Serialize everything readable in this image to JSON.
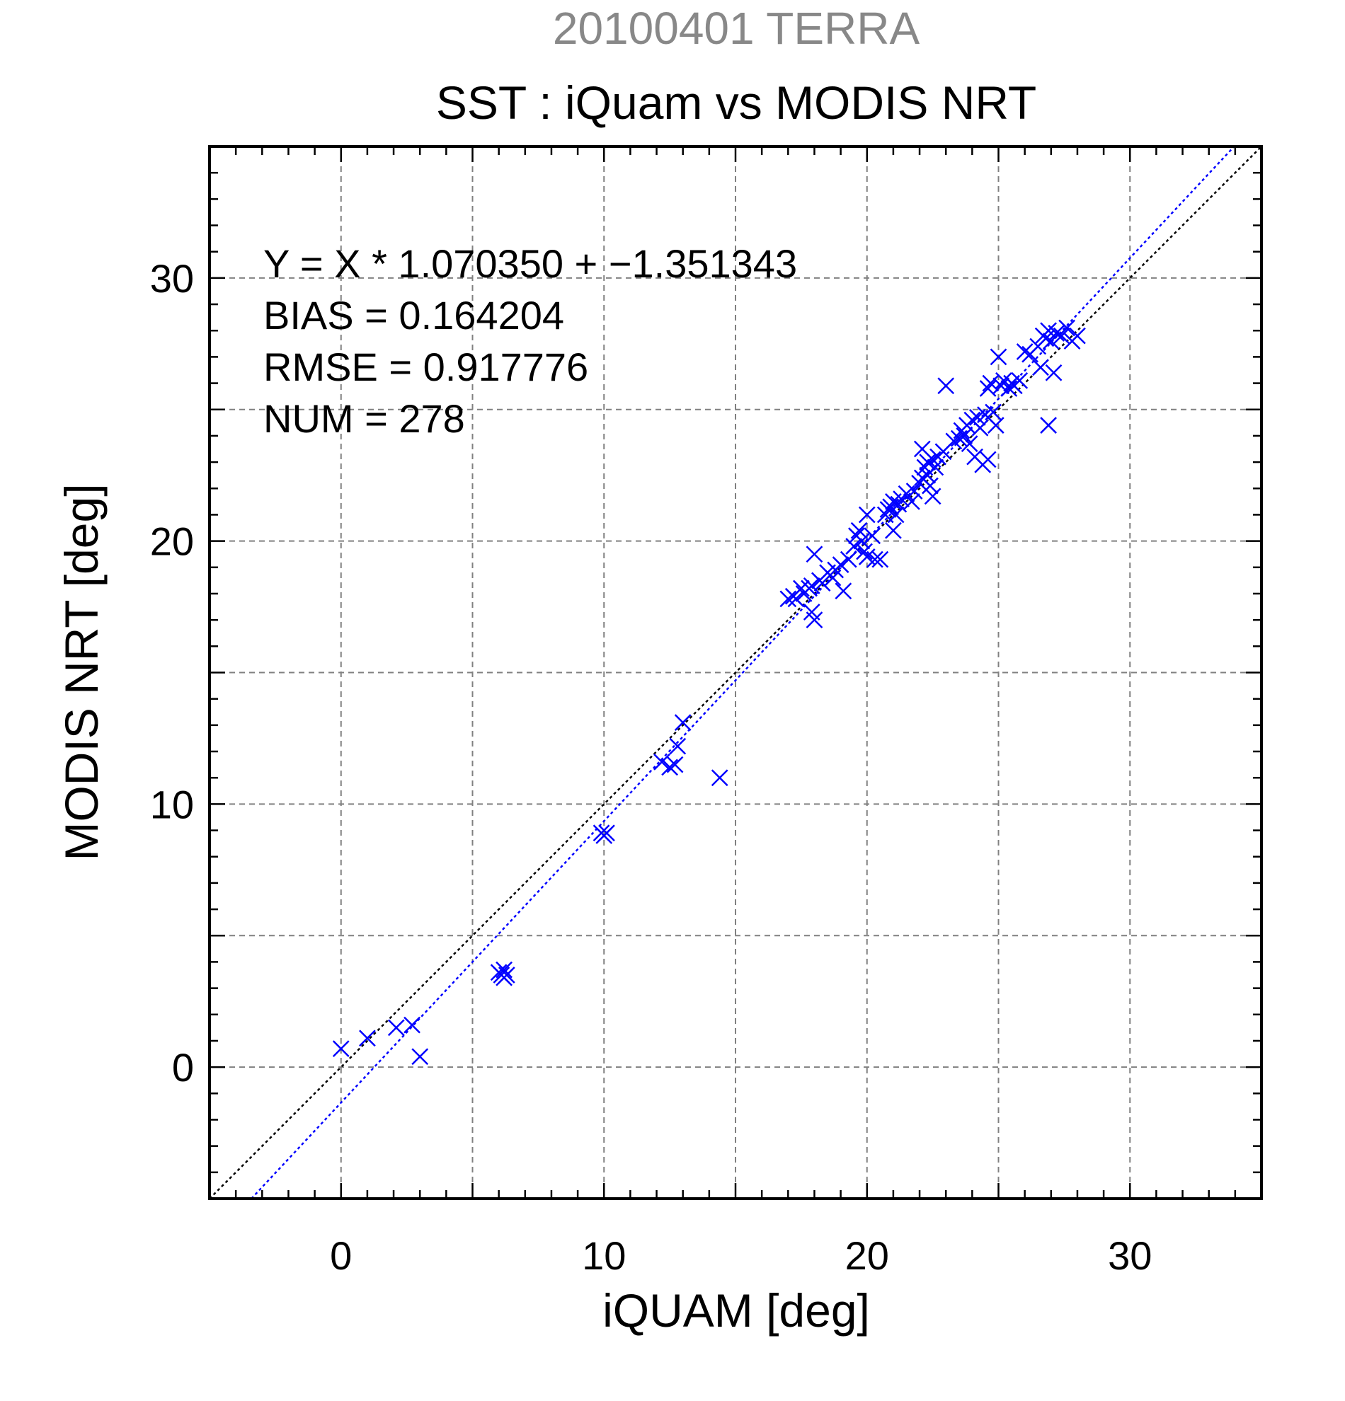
{
  "chart_data": {
    "type": "scatter",
    "supertitle": "20100401 TERRA",
    "title": "SST : iQuam vs MODIS NRT",
    "xlabel": "iQUAM [deg]",
    "ylabel": "MODIS NRT [deg]",
    "xlim": [
      -5,
      35
    ],
    "ylim": [
      -5,
      35
    ],
    "x_ticks": [
      0,
      10,
      20,
      30
    ],
    "y_ticks": [
      0,
      10,
      20,
      30
    ],
    "grid": true,
    "annotations": [
      "Y = X * 1.070350 + −1.351343",
      "BIAS = 0.164204",
      "RMSE = 0.917776",
      "NUM = 278"
    ],
    "lines": [
      {
        "name": "1:1",
        "slope": 1.0,
        "intercept": 0.0,
        "color": "#000000",
        "style": "dotted"
      },
      {
        "name": "fit",
        "slope": 1.07035,
        "intercept": -1.351343,
        "color": "#0000ff",
        "style": "dotted"
      }
    ],
    "marker": "x",
    "series": [
      {
        "color": "#0000ff",
        "points": [
          [
            0.0,
            0.7
          ],
          [
            1.0,
            1.1
          ],
          [
            2.1,
            1.5
          ],
          [
            2.7,
            1.6
          ],
          [
            3.0,
            0.4
          ],
          [
            6.0,
            3.6
          ],
          [
            6.1,
            3.5
          ],
          [
            6.2,
            3.7
          ],
          [
            6.3,
            3.5
          ],
          [
            6.2,
            3.4
          ],
          [
            9.9,
            8.9
          ],
          [
            10.0,
            8.8
          ],
          [
            10.1,
            8.9
          ],
          [
            12.2,
            11.6
          ],
          [
            12.5,
            11.4
          ],
          [
            12.7,
            11.5
          ],
          [
            12.8,
            12.2
          ],
          [
            13.0,
            13.1
          ],
          [
            14.4,
            11.0
          ],
          [
            17.0,
            17.8
          ],
          [
            17.2,
            17.9
          ],
          [
            17.3,
            17.8
          ],
          [
            17.5,
            18.2
          ],
          [
            17.6,
            18.0
          ],
          [
            17.8,
            18.2
          ],
          [
            17.9,
            18.3
          ],
          [
            18.0,
            19.5
          ],
          [
            17.9,
            17.3
          ],
          [
            18.0,
            17.0
          ],
          [
            18.2,
            18.5
          ],
          [
            18.3,
            18.4
          ],
          [
            18.5,
            18.8
          ],
          [
            18.7,
            18.6
          ],
          [
            18.8,
            18.9
          ],
          [
            19.0,
            19.1
          ],
          [
            19.1,
            18.1
          ],
          [
            19.3,
            19.3
          ],
          [
            19.5,
            19.8
          ],
          [
            19.6,
            20.2
          ],
          [
            19.7,
            20.4
          ],
          [
            19.8,
            20.0
          ],
          [
            19.9,
            19.6
          ],
          [
            20.0,
            19.4
          ],
          [
            20.0,
            21.0
          ],
          [
            20.2,
            20.2
          ],
          [
            20.3,
            19.3
          ],
          [
            20.5,
            19.3
          ],
          [
            20.7,
            21.0
          ],
          [
            20.8,
            21.2
          ],
          [
            20.9,
            21.3
          ],
          [
            21.0,
            20.4
          ],
          [
            21.0,
            21.5
          ],
          [
            21.1,
            21.0
          ],
          [
            21.2,
            21.4
          ],
          [
            21.3,
            21.6
          ],
          [
            21.5,
            21.8
          ],
          [
            21.7,
            21.5
          ],
          [
            21.8,
            21.9
          ],
          [
            22.0,
            22.2
          ],
          [
            22.1,
            22.4
          ],
          [
            22.1,
            23.5
          ],
          [
            22.2,
            22.8
          ],
          [
            22.3,
            23.0
          ],
          [
            22.3,
            22.5
          ],
          [
            22.4,
            22.1
          ],
          [
            22.5,
            23.1
          ],
          [
            22.6,
            22.8
          ],
          [
            22.5,
            21.7
          ],
          [
            22.7,
            23.2
          ],
          [
            22.9,
            23.4
          ],
          [
            23.0,
            25.9
          ],
          [
            23.3,
            23.8
          ],
          [
            23.5,
            23.9
          ],
          [
            23.6,
            24.2
          ],
          [
            23.7,
            24.0
          ],
          [
            23.8,
            24.4
          ],
          [
            23.9,
            23.7
          ],
          [
            24.0,
            24.6
          ],
          [
            24.1,
            23.2
          ],
          [
            24.2,
            24.7
          ],
          [
            24.3,
            24.3
          ],
          [
            24.4,
            22.9
          ],
          [
            24.5,
            24.8
          ],
          [
            24.6,
            23.1
          ],
          [
            24.6,
            25.8
          ],
          [
            24.7,
            26.0
          ],
          [
            24.8,
            24.9
          ],
          [
            24.9,
            24.4
          ],
          [
            25.0,
            27.0
          ],
          [
            25.1,
            25.9
          ],
          [
            25.2,
            26.1
          ],
          [
            25.4,
            25.8
          ],
          [
            25.5,
            26.0
          ],
          [
            25.6,
            25.9
          ],
          [
            25.8,
            26.1
          ],
          [
            26.0,
            27.2
          ],
          [
            26.2,
            27.1
          ],
          [
            26.5,
            27.4
          ],
          [
            26.6,
            26.6
          ],
          [
            26.7,
            27.8
          ],
          [
            26.8,
            27.7
          ],
          [
            26.9,
            28.0
          ],
          [
            26.9,
            24.4
          ],
          [
            27.0,
            27.6
          ],
          [
            27.1,
            26.4
          ],
          [
            27.2,
            27.9
          ],
          [
            27.4,
            27.8
          ],
          [
            27.6,
            28.1
          ],
          [
            27.8,
            27.6
          ],
          [
            28.0,
            27.8
          ]
        ]
      }
    ]
  }
}
